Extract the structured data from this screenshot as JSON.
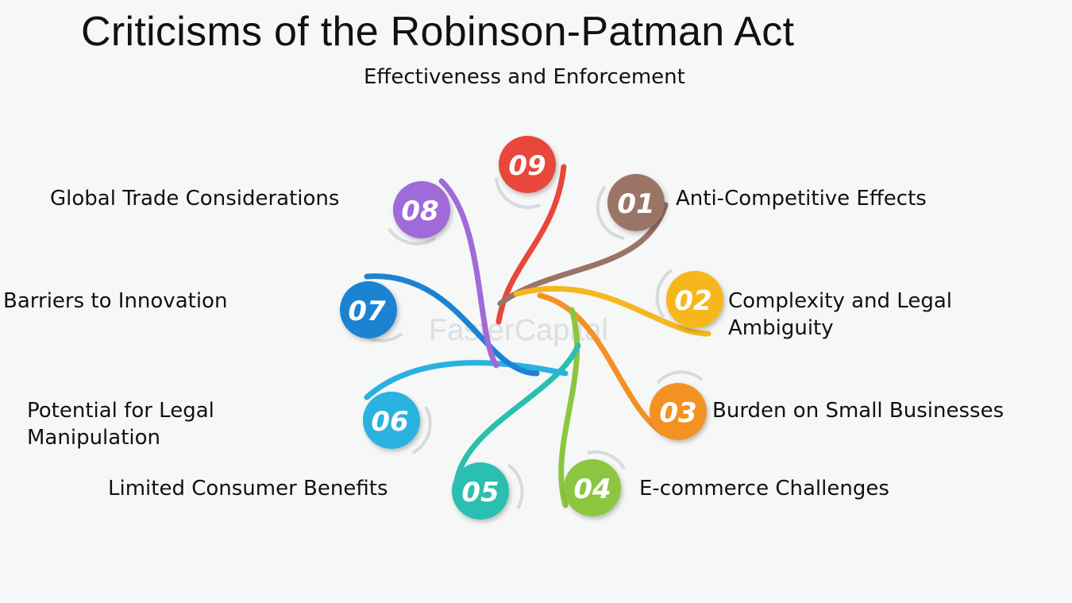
{
  "title": "Criticisms of the Robinson-Patman Act",
  "center_item": {
    "number": "09",
    "label": "Effectiveness and Enforcement",
    "color": "#e8473a"
  },
  "items": [
    {
      "number": "01",
      "label": "Anti-Competitive Effects",
      "color": "#9a7466"
    },
    {
      "number": "02",
      "label_lines": [
        "Complexity and Legal",
        "Ambiguity"
      ],
      "color": "#f5b71e"
    },
    {
      "number": "03",
      "label": "Burden on Small Businesses",
      "color": "#f39224"
    },
    {
      "number": "04",
      "label": "E-commerce Challenges",
      "color": "#8cc63f"
    },
    {
      "number": "05",
      "label": "Limited Consumer Benefits",
      "color": "#2bbfb0"
    },
    {
      "number": "06",
      "label_lines": [
        "Potential for Legal",
        "Manipulation"
      ],
      "color": "#29b2e1"
    },
    {
      "number": "07",
      "label": "Barriers to Innovation",
      "color": "#1e82d2"
    },
    {
      "number": "08",
      "label": "Global Trade Considerations",
      "color": "#a06ad8"
    }
  ],
  "watermark": "FasterCapital"
}
